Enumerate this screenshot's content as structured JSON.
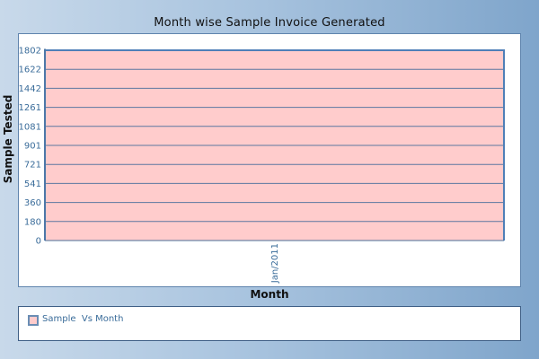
{
  "chart_data": {
    "type": "area",
    "title": "Month wise Sample Invoice Generated",
    "xlabel": "Month",
    "ylabel": "Sample Tested",
    "categories": [
      "Jan/2011"
    ],
    "yticks": [
      "0",
      "180",
      "360",
      "541",
      "721",
      "901",
      "1081",
      "1261",
      "1442",
      "1622",
      "1802"
    ],
    "ylim": [
      0,
      1802
    ],
    "grid": true,
    "legend_position": "bottom",
    "series": [
      {
        "name": "Sample  Vs Month",
        "values": [
          1802
        ],
        "fill": "#ffcccc",
        "stroke": "#4f7fb8"
      }
    ]
  }
}
